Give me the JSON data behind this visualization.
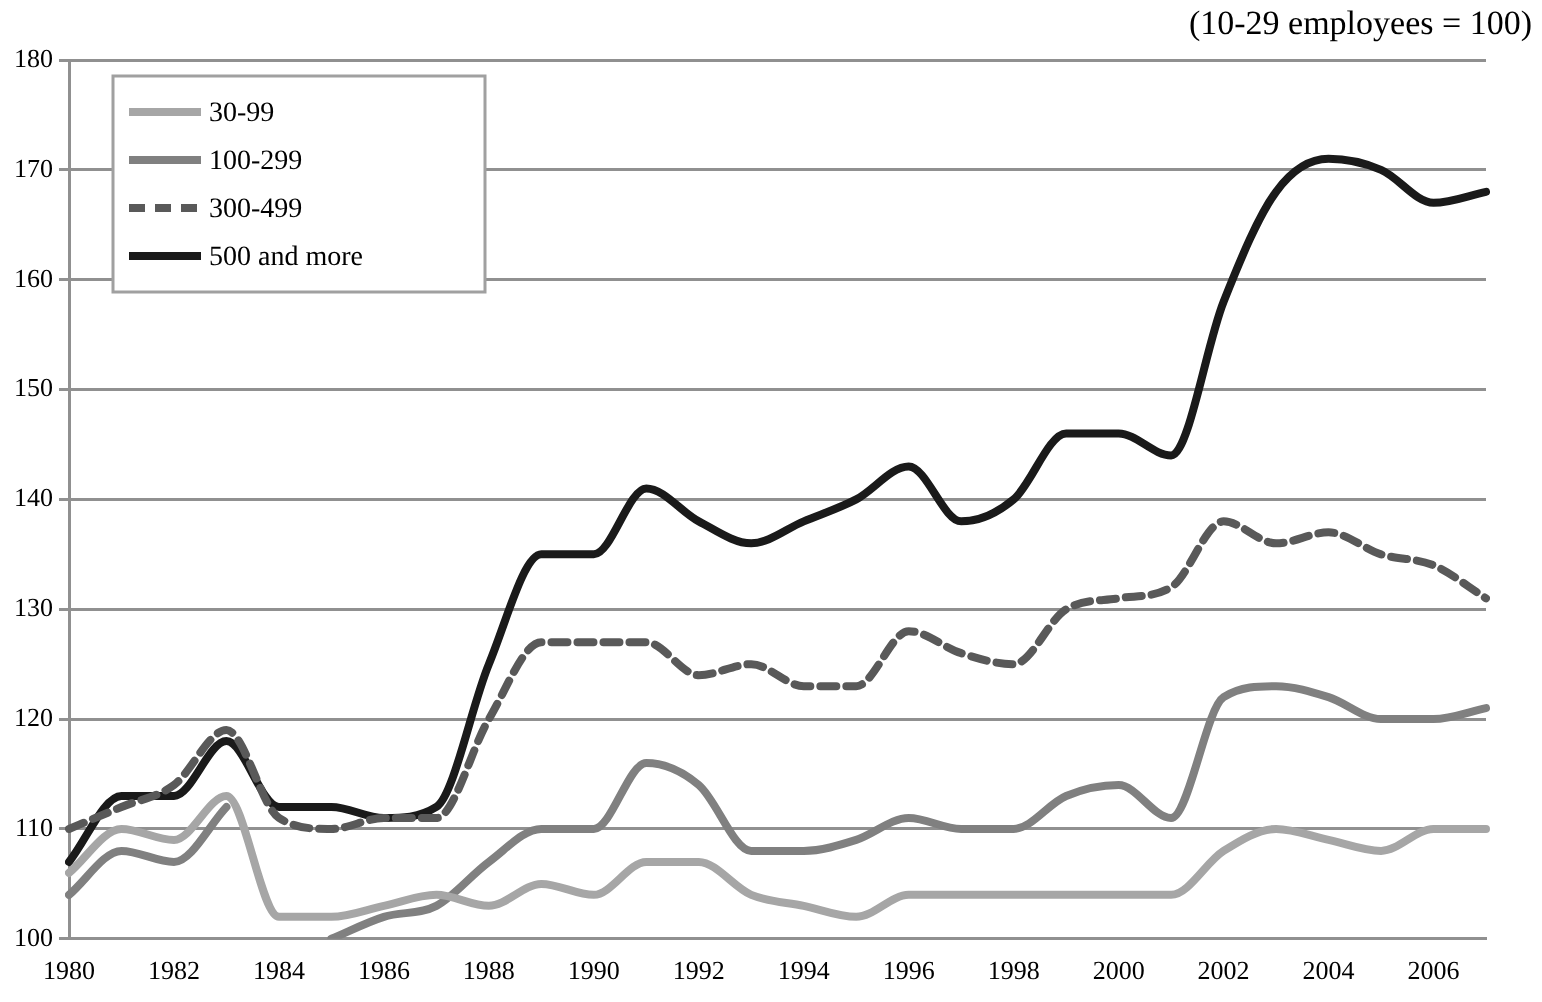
{
  "chart_data": {
    "type": "line",
    "annotations": [
      "(10-29 employees = 100)"
    ],
    "categories": [
      "1980",
      null,
      "1982",
      null,
      "1984",
      null,
      "1986",
      null,
      "1988",
      null,
      "1990",
      null,
      "1992",
      null,
      "1994",
      null,
      "1996",
      null,
      "1998",
      null,
      "2000",
      null,
      "2002",
      null,
      "2004",
      null,
      "2006",
      null
    ],
    "series": [
      {
        "name": "30-99",
        "color": "#a6a6a6",
        "values": [
          106,
          110,
          109,
          113,
          102,
          102,
          103,
          104,
          103,
          105,
          104,
          107,
          107,
          104,
          103,
          102,
          104,
          104,
          104,
          104,
          104,
          104,
          108,
          110,
          109,
          108,
          110,
          110
        ]
      },
      {
        "name": "100-299",
        "color": "#808080",
        "values": [
          104,
          108,
          107,
          112,
          null,
          100,
          102,
          103,
          107,
          110,
          110,
          116,
          114,
          108,
          108,
          109,
          111,
          110,
          110,
          113,
          114,
          111,
          122,
          123,
          122,
          120,
          120,
          121
        ]
      },
      {
        "name": "300-499",
        "color": "#595959",
        "line_style": "dashed",
        "values": [
          110,
          112,
          114,
          119,
          111,
          110,
          111,
          111,
          120,
          127,
          127,
          127,
          124,
          125,
          123,
          123,
          128,
          126,
          125,
          130,
          131,
          132,
          138,
          136,
          137,
          135,
          134,
          131
        ]
      },
      {
        "name": "500 and more",
        "color": "#1a1a1a",
        "values": [
          107,
          113,
          113,
          118,
          112,
          112,
          111,
          112,
          125,
          135,
          135,
          141,
          138,
          136,
          138,
          140,
          143,
          138,
          140,
          146,
          146,
          144,
          158,
          168,
          171,
          170,
          167,
          168
        ]
      }
    ],
    "ylim": [
      100,
      180
    ],
    "yticks": [
      100,
      110,
      120,
      130,
      140,
      150,
      160,
      170,
      180
    ],
    "grid": "y",
    "legend": "top left",
    "marker": "none"
  }
}
